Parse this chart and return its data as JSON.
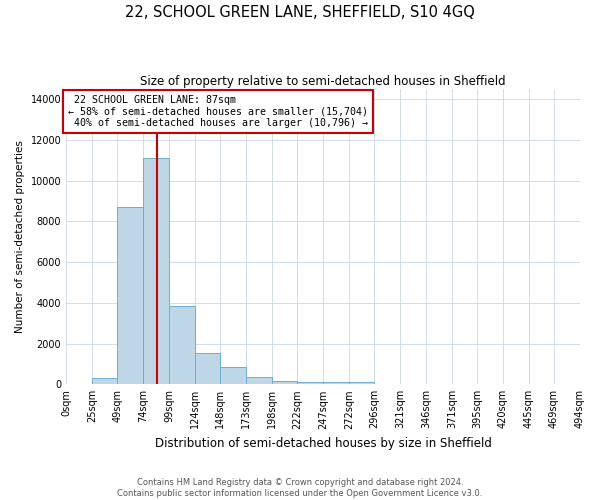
{
  "title": "22, SCHOOL GREEN LANE, SHEFFIELD, S10 4GQ",
  "subtitle": "Size of property relative to semi-detached houses in Sheffield",
  "xlabel": "Distribution of semi-detached houses by size in Sheffield",
  "ylabel": "Number of semi-detached properties",
  "property_label": "22 SCHOOL GREEN LANE: 87sqm",
  "pct_smaller": 58,
  "pct_larger": 40,
  "count_smaller": 15704,
  "count_larger": 10796,
  "bin_edges": [
    0,
    25,
    49,
    74,
    99,
    124,
    148,
    173,
    198,
    222,
    247,
    272,
    296,
    321,
    346,
    371,
    395,
    420,
    445,
    469,
    494
  ],
  "bar_heights": [
    0,
    300,
    8700,
    11100,
    3850,
    1550,
    850,
    380,
    150,
    100,
    100,
    100,
    0,
    0,
    0,
    0,
    0,
    0,
    0,
    0
  ],
  "bar_color": "#BDD7E7",
  "bar_edge_color": "#6BAED6",
  "vline_color": "#CC0000",
  "vline_x": 87,
  "annotation_box_color": "#CC0000",
  "ylim": [
    0,
    14500
  ],
  "yticks": [
    0,
    2000,
    4000,
    6000,
    8000,
    10000,
    12000,
    14000
  ],
  "xtick_labels": [
    "0sqm",
    "25sqm",
    "49sqm",
    "74sqm",
    "99sqm",
    "124sqm",
    "148sqm",
    "173sqm",
    "198sqm",
    "222sqm",
    "247sqm",
    "272sqm",
    "296sqm",
    "321sqm",
    "346sqm",
    "371sqm",
    "395sqm",
    "420sqm",
    "445sqm",
    "469sqm",
    "494sqm"
  ],
  "footer_line1": "Contains HM Land Registry data © Crown copyright and database right 2024.",
  "footer_line2": "Contains public sector information licensed under the Open Government Licence v3.0.",
  "figsize": [
    6.0,
    5.0
  ],
  "dpi": 100
}
